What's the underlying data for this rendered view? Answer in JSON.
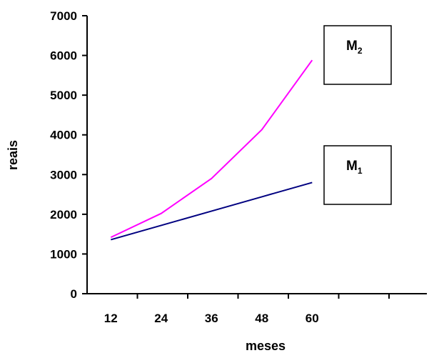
{
  "chart_data": {
    "type": "line",
    "x": [
      12,
      24,
      36,
      48,
      60
    ],
    "x_tick_labels": [
      "12",
      "24",
      "36",
      "48",
      "60"
    ],
    "y_tick_labels": [
      "0",
      "1000",
      "2000",
      "3000",
      "4000",
      "5000",
      "6000",
      "7000"
    ],
    "ylim": [
      0,
      7000
    ],
    "xlabel": "meses",
    "ylabel": "reais",
    "grid": false,
    "legend": "none",
    "series": [
      {
        "name": "M2",
        "label_main": "M",
        "label_sub": "2",
        "color": "#ff00ff",
        "values": [
          1420,
          2020,
          2900,
          4130,
          5880
        ]
      },
      {
        "name": "M1",
        "label_main": "M",
        "label_sub": "1",
        "color": "#000080",
        "values": [
          1360,
          1720,
          2080,
          2440,
          2800
        ]
      }
    ]
  }
}
